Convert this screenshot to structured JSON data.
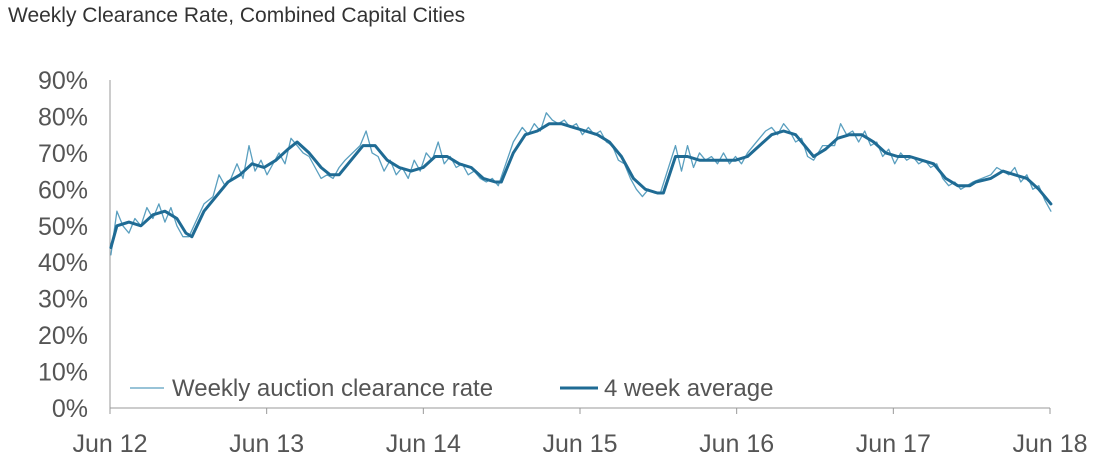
{
  "chart_data": {
    "type": "line",
    "title": "Weekly Clearance Rate, Combined Capital Cities",
    "xlabel": "",
    "ylabel": "",
    "x_ticks": [
      "Jun 12",
      "Jun 13",
      "Jun 14",
      "Jun 15",
      "Jun 16",
      "Jun 17",
      "Jun 18"
    ],
    "y_ticks": [
      "0%",
      "10%",
      "20%",
      "30%",
      "40%",
      "50%",
      "60%",
      "70%",
      "80%",
      "90%"
    ],
    "ylim": [
      0,
      90
    ],
    "y_unit": "%",
    "grid": false,
    "legend_position": "bottom-left",
    "series": [
      {
        "name": "Weekly auction clearance rate",
        "color": "#5a9fbf",
        "style": "thin",
        "points": [
          [
            "2012-06-03",
            42
          ],
          [
            "2012-06-17",
            54
          ],
          [
            "2012-07-01",
            50
          ],
          [
            "2012-07-15",
            48
          ],
          [
            "2012-07-29",
            52
          ],
          [
            "2012-08-12",
            50
          ],
          [
            "2012-08-26",
            55
          ],
          [
            "2012-09-09",
            52
          ],
          [
            "2012-09-23",
            56
          ],
          [
            "2012-10-07",
            51
          ],
          [
            "2012-10-21",
            55
          ],
          [
            "2012-11-04",
            50
          ],
          [
            "2012-11-18",
            47
          ],
          [
            "2012-12-02",
            47
          ],
          [
            "2013-01-06",
            56
          ],
          [
            "2013-01-27",
            58
          ],
          [
            "2013-02-10",
            64
          ],
          [
            "2013-02-24",
            61
          ],
          [
            "2013-03-10",
            63
          ],
          [
            "2013-03-24",
            67
          ],
          [
            "2013-04-07",
            63
          ],
          [
            "2013-04-21",
            72
          ],
          [
            "2013-05-05",
            65
          ],
          [
            "2013-05-19",
            68
          ],
          [
            "2013-06-02",
            64
          ],
          [
            "2013-06-16",
            67
          ],
          [
            "2013-06-30",
            70
          ],
          [
            "2013-07-14",
            67
          ],
          [
            "2013-07-28",
            74
          ],
          [
            "2013-08-11",
            72
          ],
          [
            "2013-08-25",
            70
          ],
          [
            "2013-09-08",
            69
          ],
          [
            "2013-09-22",
            66
          ],
          [
            "2013-10-06",
            63
          ],
          [
            "2013-10-20",
            64
          ],
          [
            "2013-11-03",
            63
          ],
          [
            "2013-11-17",
            66
          ],
          [
            "2013-12-01",
            68
          ],
          [
            "2014-01-05",
            72
          ],
          [
            "2014-01-19",
            76
          ],
          [
            "2014-02-02",
            70
          ],
          [
            "2014-02-16",
            69
          ],
          [
            "2014-03-02",
            65
          ],
          [
            "2014-03-16",
            68
          ],
          [
            "2014-03-30",
            64
          ],
          [
            "2014-04-13",
            66
          ],
          [
            "2014-04-27",
            63
          ],
          [
            "2014-05-11",
            68
          ],
          [
            "2014-05-25",
            65
          ],
          [
            "2014-06-08",
            70
          ],
          [
            "2014-06-22",
            68
          ],
          [
            "2014-07-06",
            73
          ],
          [
            "2014-07-20",
            67
          ],
          [
            "2014-08-03",
            69
          ],
          [
            "2014-08-17",
            66
          ],
          [
            "2014-08-31",
            67
          ],
          [
            "2014-09-14",
            64
          ],
          [
            "2014-09-28",
            65
          ],
          [
            "2014-10-12",
            63
          ],
          [
            "2014-10-26",
            62
          ],
          [
            "2014-11-09",
            63
          ],
          [
            "2014-11-23",
            61
          ],
          [
            "2014-12-28",
            73
          ],
          [
            "2015-01-18",
            77
          ],
          [
            "2015-02-01",
            75
          ],
          [
            "2015-02-15",
            78
          ],
          [
            "2015-03-01",
            76
          ],
          [
            "2015-03-15",
            81
          ],
          [
            "2015-03-29",
            79
          ],
          [
            "2015-04-12",
            78
          ],
          [
            "2015-04-26",
            79
          ],
          [
            "2015-05-10",
            77
          ],
          [
            "2015-05-24",
            78
          ],
          [
            "2015-06-07",
            75
          ],
          [
            "2015-06-21",
            77
          ],
          [
            "2015-07-05",
            75
          ],
          [
            "2015-07-19",
            76
          ],
          [
            "2015-08-02",
            73
          ],
          [
            "2015-08-16",
            72
          ],
          [
            "2015-08-30",
            68
          ],
          [
            "2015-09-13",
            67
          ],
          [
            "2015-09-27",
            63
          ],
          [
            "2015-10-11",
            60
          ],
          [
            "2015-10-25",
            58
          ],
          [
            "2015-11-08",
            60
          ],
          [
            "2015-11-22",
            59
          ],
          [
            "2015-12-06",
            59
          ],
          [
            "2016-01-10",
            72
          ],
          [
            "2016-01-24",
            65
          ],
          [
            "2016-02-07",
            72
          ],
          [
            "2016-02-21",
            66
          ],
          [
            "2016-03-06",
            70
          ],
          [
            "2016-03-20",
            68
          ],
          [
            "2016-04-03",
            69
          ],
          [
            "2016-04-17",
            67
          ],
          [
            "2016-05-01",
            70
          ],
          [
            "2016-05-15",
            67
          ],
          [
            "2016-05-29",
            69
          ],
          [
            "2016-06-12",
            67
          ],
          [
            "2016-06-26",
            70
          ],
          [
            "2016-07-10",
            72
          ],
          [
            "2016-07-24",
            74
          ],
          [
            "2016-08-07",
            76
          ],
          [
            "2016-08-21",
            77
          ],
          [
            "2016-09-04",
            75
          ],
          [
            "2016-09-18",
            78
          ],
          [
            "2016-10-02",
            76
          ],
          [
            "2016-10-16",
            73
          ],
          [
            "2016-10-30",
            74
          ],
          [
            "2016-11-13",
            69
          ],
          [
            "2016-11-27",
            68
          ],
          [
            "2016-12-18",
            72
          ],
          [
            "2017-01-15",
            72
          ],
          [
            "2017-01-29",
            78
          ],
          [
            "2017-02-12",
            75
          ],
          [
            "2017-02-26",
            76
          ],
          [
            "2017-03-12",
            73
          ],
          [
            "2017-03-26",
            76
          ],
          [
            "2017-04-09",
            72
          ],
          [
            "2017-04-23",
            73
          ],
          [
            "2017-05-07",
            69
          ],
          [
            "2017-05-21",
            71
          ],
          [
            "2017-06-04",
            67
          ],
          [
            "2017-06-18",
            70
          ],
          [
            "2017-07-02",
            68
          ],
          [
            "2017-07-16",
            69
          ],
          [
            "2017-07-30",
            67
          ],
          [
            "2017-08-13",
            68
          ],
          [
            "2017-08-27",
            66
          ],
          [
            "2017-09-10",
            67
          ],
          [
            "2017-09-24",
            63
          ],
          [
            "2017-10-08",
            61
          ],
          [
            "2017-10-22",
            62
          ],
          [
            "2017-11-05",
            60
          ],
          [
            "2017-11-19",
            61
          ],
          [
            "2017-12-03",
            62
          ],
          [
            "2018-01-14",
            64
          ],
          [
            "2018-01-28",
            66
          ],
          [
            "2018-02-11",
            65
          ],
          [
            "2018-02-25",
            64
          ],
          [
            "2018-03-11",
            66
          ],
          [
            "2018-03-25",
            62
          ],
          [
            "2018-04-08",
            64
          ],
          [
            "2018-04-22",
            60
          ],
          [
            "2018-05-06",
            61
          ],
          [
            "2018-05-20",
            57
          ],
          [
            "2018-06-03",
            54
          ]
        ]
      },
      {
        "name": "4 week average",
        "color": "#1f6b94",
        "style": "thick",
        "points": [
          [
            "2012-06-03",
            44
          ],
          [
            "2012-06-17",
            50
          ],
          [
            "2012-07-15",
            51
          ],
          [
            "2012-08-12",
            50
          ],
          [
            "2012-09-09",
            53
          ],
          [
            "2012-10-07",
            54
          ],
          [
            "2012-11-04",
            52
          ],
          [
            "2012-11-25",
            48
          ],
          [
            "2012-12-09",
            47
          ],
          [
            "2013-01-06",
            54
          ],
          [
            "2013-02-03",
            58
          ],
          [
            "2013-03-03",
            62
          ],
          [
            "2013-03-31",
            64
          ],
          [
            "2013-04-28",
            67
          ],
          [
            "2013-05-26",
            66
          ],
          [
            "2013-06-23",
            68
          ],
          [
            "2013-07-21",
            71
          ],
          [
            "2013-08-11",
            73
          ],
          [
            "2013-09-08",
            70
          ],
          [
            "2013-10-06",
            66
          ],
          [
            "2013-10-27",
            64
          ],
          [
            "2013-11-17",
            64
          ],
          [
            "2013-12-08",
            67
          ],
          [
            "2014-01-12",
            72
          ],
          [
            "2014-02-09",
            72
          ],
          [
            "2014-03-09",
            68
          ],
          [
            "2014-04-06",
            66
          ],
          [
            "2014-05-04",
            65
          ],
          [
            "2014-06-01",
            66
          ],
          [
            "2014-06-29",
            69
          ],
          [
            "2014-07-27",
            69
          ],
          [
            "2014-08-24",
            67
          ],
          [
            "2014-09-21",
            66
          ],
          [
            "2014-10-19",
            63
          ],
          [
            "2014-11-16",
            62
          ],
          [
            "2014-11-30",
            62
          ],
          [
            "2014-12-28",
            70
          ],
          [
            "2015-01-25",
            75
          ],
          [
            "2015-02-22",
            76
          ],
          [
            "2015-03-22",
            78
          ],
          [
            "2015-04-19",
            78
          ],
          [
            "2015-05-17",
            77
          ],
          [
            "2015-06-14",
            76
          ],
          [
            "2015-07-12",
            75
          ],
          [
            "2015-08-09",
            73
          ],
          [
            "2015-09-06",
            69
          ],
          [
            "2015-10-04",
            63
          ],
          [
            "2015-11-01",
            60
          ],
          [
            "2015-11-29",
            59
          ],
          [
            "2015-12-13",
            59
          ],
          [
            "2016-01-10",
            69
          ],
          [
            "2016-02-07",
            69
          ],
          [
            "2016-03-06",
            68
          ],
          [
            "2016-04-03",
            68
          ],
          [
            "2016-05-01",
            68
          ],
          [
            "2016-05-29",
            68
          ],
          [
            "2016-06-26",
            69
          ],
          [
            "2016-07-24",
            72
          ],
          [
            "2016-08-21",
            75
          ],
          [
            "2016-09-18",
            76
          ],
          [
            "2016-10-16",
            75
          ],
          [
            "2016-11-13",
            71
          ],
          [
            "2016-11-27",
            69
          ],
          [
            "2016-12-25",
            71
          ],
          [
            "2017-01-22",
            74
          ],
          [
            "2017-02-19",
            75
          ],
          [
            "2017-03-19",
            75
          ],
          [
            "2017-04-16",
            73
          ],
          [
            "2017-05-14",
            70
          ],
          [
            "2017-06-11",
            69
          ],
          [
            "2017-07-09",
            69
          ],
          [
            "2017-08-06",
            68
          ],
          [
            "2017-09-03",
            67
          ],
          [
            "2017-10-01",
            63
          ],
          [
            "2017-10-29",
            61
          ],
          [
            "2017-11-26",
            61
          ],
          [
            "2017-12-10",
            62
          ],
          [
            "2018-01-14",
            63
          ],
          [
            "2018-02-11",
            65
          ],
          [
            "2018-03-11",
            64
          ],
          [
            "2018-04-08",
            63
          ],
          [
            "2018-05-06",
            60
          ],
          [
            "2018-06-03",
            56
          ]
        ]
      }
    ]
  }
}
